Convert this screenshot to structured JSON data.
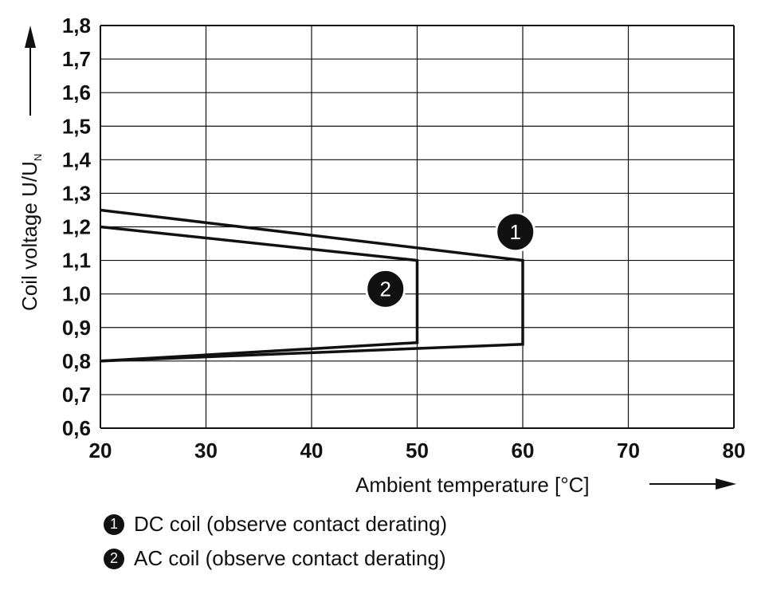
{
  "chart_data": {
    "type": "line",
    "title": "",
    "xlabel": "Ambient temperature [°C]",
    "ylabel_main": "Coil voltage U/U",
    "ylabel_sub": "N",
    "xlim": [
      20,
      80
    ],
    "ylim": [
      0.6,
      1.8
    ],
    "grid": true,
    "x_ticks": [
      {
        "value": 20,
        "label": "20"
      },
      {
        "value": 30,
        "label": "30"
      },
      {
        "value": 40,
        "label": "40"
      },
      {
        "value": 50,
        "label": "50"
      },
      {
        "value": 60,
        "label": "60"
      },
      {
        "value": 70,
        "label": "70"
      },
      {
        "value": 80,
        "label": "80"
      }
    ],
    "y_ticks": [
      {
        "value": 0.6,
        "label": "0,6"
      },
      {
        "value": 0.7,
        "label": "0,7"
      },
      {
        "value": 0.8,
        "label": "0,8"
      },
      {
        "value": 0.9,
        "label": "0,9"
      },
      {
        "value": 1.0,
        "label": "1,0"
      },
      {
        "value": 1.1,
        "label": "1,1"
      },
      {
        "value": 1.2,
        "label": "1,2"
      },
      {
        "value": 1.3,
        "label": "1,3"
      },
      {
        "value": 1.4,
        "label": "1,4"
      },
      {
        "value": 1.5,
        "label": "1,5"
      },
      {
        "value": 1.6,
        "label": "1,6"
      },
      {
        "value": 1.7,
        "label": "1,7"
      },
      {
        "value": 1.8,
        "label": "1,8"
      }
    ],
    "series": [
      {
        "id": "1",
        "name": "DC coil (observe contact derating)",
        "marker_label": "1",
        "marker_at": {
          "x": 59.3,
          "y": 1.185
        },
        "points": [
          [
            20,
            1.25
          ],
          [
            60,
            1.1
          ],
          [
            60,
            0.85
          ],
          [
            20,
            0.8
          ]
        ]
      },
      {
        "id": "2",
        "name": "AC coil (observe contact derating)",
        "marker_label": "2",
        "marker_at": {
          "x": 47.0,
          "y": 1.015
        },
        "points": [
          [
            20,
            1.2
          ],
          [
            50,
            1.1
          ],
          [
            50,
            0.855
          ],
          [
            20,
            0.8
          ]
        ]
      }
    ]
  },
  "legend": [
    {
      "num": "1",
      "label": "DC coil (observe contact derating)"
    },
    {
      "num": "2",
      "label": "AC coil (observe contact derating)"
    }
  ]
}
